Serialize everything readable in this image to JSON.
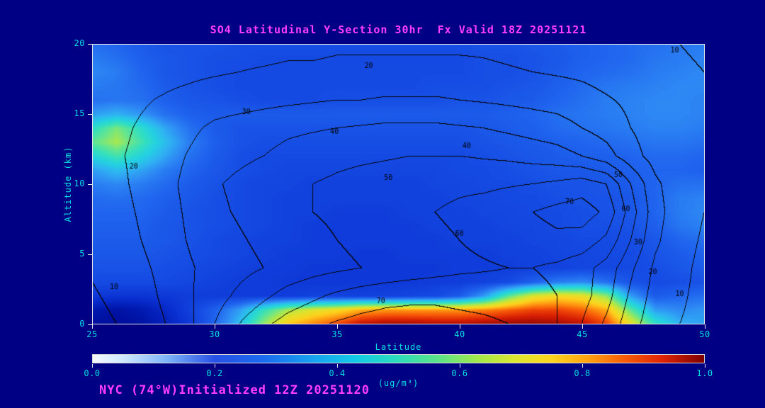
{
  "footer": "NYC (74°W)Initialized 12Z 20251120",
  "colors": {
    "background": "#000084",
    "title": "#ff3dff",
    "axis_text": "#00e0e0",
    "frame": "#e8e8e8",
    "contour": "#000000"
  },
  "chart_data": {
    "type": "heatmap",
    "title": "SO4 Latitudinal Y-Section 30hr  Fx Valid 18Z 20251121",
    "xlabel": "Latitude",
    "ylabel": "Altitude (km)",
    "x_range": [
      25,
      50
    ],
    "y_range": [
      0,
      20
    ],
    "x_ticks": [
      25,
      30,
      35,
      40,
      45,
      50
    ],
    "y_ticks": [
      20,
      15,
      10,
      5,
      0
    ],
    "grid": "off",
    "colorbar": {
      "min": 0.0,
      "max": 1.0,
      "ticks": [
        "0.0",
        "0.2",
        "0.4",
        "0.6",
        "0.8",
        "1.0"
      ],
      "units": "(ug/m³)",
      "stops": [
        [
          0.0,
          "#f6faff"
        ],
        [
          0.05,
          "#cfe8ff"
        ],
        [
          0.12,
          "#7fb6f8"
        ],
        [
          0.2,
          "#2750e6"
        ],
        [
          0.28,
          "#1a6cf0"
        ],
        [
          0.36,
          "#18a2f0"
        ],
        [
          0.43,
          "#12cae6"
        ],
        [
          0.5,
          "#2cdcba"
        ],
        [
          0.57,
          "#60e484"
        ],
        [
          0.63,
          "#a2e84c"
        ],
        [
          0.69,
          "#dce630"
        ],
        [
          0.75,
          "#fdd51e"
        ],
        [
          0.81,
          "#ffa110"
        ],
        [
          0.87,
          "#f85c08"
        ],
        [
          0.93,
          "#e02404"
        ],
        [
          1.0,
          "#7e0000"
        ]
      ]
    },
    "fill_colormap_stops": [
      [
        0.0,
        "#000084"
      ],
      [
        0.07,
        "#0016aa"
      ],
      [
        0.14,
        "#0a30d2"
      ],
      [
        0.2,
        "#154ae2"
      ],
      [
        0.26,
        "#1f64ee"
      ],
      [
        0.32,
        "#2e88f4"
      ],
      [
        0.38,
        "#2fb2f2"
      ],
      [
        0.44,
        "#24d0e2"
      ],
      [
        0.5,
        "#34dfbe"
      ],
      [
        0.56,
        "#66e68e"
      ],
      [
        0.62,
        "#aae84e"
      ],
      [
        0.68,
        "#e0e22c"
      ],
      [
        0.74,
        "#fdd11d"
      ],
      [
        0.8,
        "#ff9812"
      ],
      [
        0.86,
        "#f65608"
      ],
      [
        0.92,
        "#d81e04"
      ],
      [
        1.0,
        "#7e0000"
      ]
    ],
    "so4_grid": {
      "lat_min": 25,
      "lat_max": 50,
      "alt_top": 20,
      "alt_bottom": 0,
      "row_order": "top_to_bottom",
      "values_x100": [
        [
          28,
          26,
          24,
          22,
          22,
          22,
          21,
          21,
          21,
          21,
          21,
          21,
          21,
          21,
          21,
          21,
          22,
          22,
          23,
          24,
          25,
          26,
          27,
          28,
          29,
          30
        ],
        [
          30,
          28,
          25,
          23,
          22,
          21,
          21,
          20,
          20,
          20,
          20,
          20,
          20,
          20,
          20,
          20,
          21,
          21,
          22,
          23,
          25,
          26,
          27,
          29,
          30,
          31
        ],
        [
          32,
          30,
          26,
          23,
          22,
          21,
          20,
          20,
          20,
          20,
          20,
          20,
          20,
          20,
          20,
          20,
          21,
          21,
          22,
          24,
          26,
          27,
          28,
          30,
          31,
          32
        ],
        [
          30,
          29,
          27,
          24,
          22,
          21,
          20,
          20,
          20,
          20,
          20,
          20,
          20,
          20,
          21,
          21,
          21,
          22,
          23,
          25,
          27,
          29,
          30,
          31,
          32,
          32
        ],
        [
          28,
          29,
          28,
          25,
          23,
          22,
          21,
          20,
          20,
          20,
          21,
          21,
          21,
          21,
          21,
          22,
          22,
          23,
          24,
          26,
          28,
          30,
          31,
          32,
          32,
          31
        ],
        [
          35,
          38,
          34,
          28,
          25,
          24,
          24,
          24,
          24,
          24,
          24,
          24,
          24,
          24,
          24,
          24,
          24,
          25,
          26,
          28,
          29,
          30,
          31,
          32,
          32,
          31
        ],
        [
          48,
          58,
          48,
          36,
          28,
          24,
          22,
          22,
          22,
          22,
          22,
          22,
          22,
          22,
          22,
          22,
          23,
          24,
          25,
          27,
          28,
          29,
          30,
          31,
          31,
          30
        ],
        [
          55,
          62,
          52,
          40,
          30,
          25,
          22,
          21,
          21,
          21,
          21,
          21,
          21,
          21,
          21,
          21,
          22,
          23,
          24,
          25,
          26,
          27,
          28,
          29,
          29,
          28
        ],
        [
          45,
          52,
          45,
          36,
          28,
          24,
          21,
          20,
          20,
          20,
          20,
          20,
          20,
          20,
          20,
          20,
          21,
          22,
          23,
          24,
          25,
          25,
          26,
          27,
          27,
          26
        ],
        [
          35,
          40,
          36,
          30,
          26,
          23,
          21,
          20,
          19,
          19,
          19,
          19,
          19,
          19,
          19,
          20,
          20,
          21,
          22,
          23,
          23,
          24,
          25,
          26,
          26,
          25
        ],
        [
          30,
          32,
          30,
          27,
          24,
          22,
          20,
          19,
          19,
          18,
          18,
          18,
          18,
          18,
          19,
          19,
          20,
          20,
          21,
          22,
          22,
          23,
          24,
          26,
          28,
          28
        ],
        [
          27,
          28,
          27,
          25,
          23,
          21,
          20,
          19,
          18,
          18,
          18,
          18,
          18,
          18,
          18,
          19,
          19,
          20,
          20,
          21,
          22,
          22,
          23,
          26,
          30,
          31
        ],
        [
          26,
          26,
          26,
          24,
          22,
          21,
          20,
          19,
          18,
          18,
          17,
          17,
          17,
          18,
          18,
          18,
          19,
          19,
          20,
          20,
          21,
          22,
          23,
          26,
          30,
          32
        ],
        [
          25,
          25,
          25,
          23,
          22,
          21,
          20,
          19,
          18,
          17,
          17,
          17,
          17,
          17,
          18,
          18,
          18,
          19,
          19,
          20,
          21,
          21,
          22,
          25,
          29,
          31
        ],
        [
          24,
          24,
          24,
          23,
          22,
          20,
          19,
          18,
          18,
          17,
          17,
          17,
          17,
          17,
          17,
          18,
          18,
          18,
          19,
          19,
          20,
          20,
          21,
          23,
          26,
          28
        ],
        [
          23,
          23,
          23,
          22,
          21,
          20,
          19,
          18,
          17,
          17,
          17,
          16,
          16,
          17,
          17,
          17,
          17,
          18,
          18,
          19,
          19,
          20,
          20,
          22,
          24,
          26
        ],
        [
          22,
          22,
          22,
          21,
          20,
          19,
          18,
          17,
          17,
          16,
          16,
          16,
          16,
          16,
          16,
          17,
          17,
          17,
          18,
          18,
          19,
          19,
          20,
          21,
          23,
          24
        ],
        [
          20,
          20,
          20,
          20,
          19,
          18,
          17,
          17,
          16,
          16,
          16,
          16,
          16,
          16,
          17,
          17,
          18,
          20,
          25,
          30,
          32,
          28,
          22,
          20,
          21,
          22
        ],
        [
          16,
          15,
          15,
          16,
          17,
          17,
          17,
          17,
          17,
          18,
          18,
          18,
          18,
          19,
          20,
          24,
          35,
          55,
          68,
          72,
          70,
          60,
          35,
          24,
          26,
          28
        ],
        [
          8,
          6,
          8,
          12,
          18,
          25,
          35,
          50,
          62,
          68,
          72,
          78,
          80,
          80,
          80,
          80,
          82,
          85,
          88,
          88,
          85,
          78,
          55,
          35,
          32,
          34
        ],
        [
          5,
          4,
          6,
          10,
          16,
          26,
          40,
          60,
          75,
          82,
          88,
          95,
          97,
          97,
          96,
          96,
          97,
          98,
          98,
          97,
          95,
          88,
          70,
          50,
          38,
          36
        ]
      ]
    },
    "contour_overlay": {
      "levels": [
        10,
        20,
        30,
        40,
        50,
        60,
        70
      ],
      "alt_top": 20,
      "alt_bottom": 0,
      "row_order": "top_to_bottom",
      "values": [
        [
          12,
          13,
          14,
          15,
          15,
          15,
          16,
          16,
          17,
          17,
          18,
          18,
          18,
          18,
          18,
          18,
          18,
          17,
          16,
          15,
          14,
          13,
          12,
          11,
          10,
          9
        ],
        [
          14,
          15,
          16,
          17,
          18,
          19,
          20,
          21,
          22,
          22,
          23,
          23,
          23,
          23,
          23,
          23,
          22,
          21,
          20,
          19,
          18,
          16,
          14,
          12,
          11,
          10
        ],
        [
          15,
          17,
          19,
          21,
          23,
          25,
          26,
          27,
          28,
          29,
          30,
          30,
          31,
          31,
          31,
          30,
          29,
          28,
          27,
          26,
          24,
          21,
          18,
          15,
          12,
          10
        ],
        [
          16,
          18,
          21,
          24,
          28,
          32,
          34,
          36,
          38,
          39,
          40,
          41,
          42,
          42,
          42,
          41,
          40,
          38,
          36,
          34,
          30,
          26,
          20,
          15,
          12,
          10
        ],
        [
          16,
          19,
          22,
          26,
          31,
          36,
          38,
          40,
          43,
          45,
          47,
          48,
          49,
          50,
          50,
          50,
          49,
          48,
          46,
          44,
          40,
          34,
          24,
          16,
          12,
          10
        ],
        [
          14,
          18,
          22,
          27,
          33,
          39,
          42,
          45,
          48,
          50,
          52,
          54,
          55,
          56,
          57,
          58,
          58,
          59,
          60,
          62,
          65,
          60,
          40,
          22,
          14,
          10
        ],
        [
          13,
          17,
          21,
          26,
          32,
          38,
          41,
          44,
          47,
          50,
          52,
          54,
          56,
          58,
          60,
          62,
          64,
          67,
          70,
          73,
          75,
          68,
          45,
          24,
          14,
          10
        ],
        [
          12,
          16,
          20,
          25,
          31,
          36,
          39,
          42,
          45,
          47,
          50,
          52,
          54,
          56,
          58,
          60,
          62,
          64,
          66,
          68,
          66,
          58,
          40,
          22,
          13,
          9
        ],
        [
          11,
          14,
          18,
          23,
          29,
          34,
          37,
          40,
          43,
          46,
          48,
          50,
          52,
          54,
          56,
          58,
          59,
          60,
          60,
          58,
          54,
          46,
          32,
          18,
          12,
          8
        ],
        [
          9,
          12,
          16,
          22,
          29,
          36,
          42,
          48,
          54,
          58,
          62,
          65,
          67,
          68,
          68,
          67,
          66,
          65,
          63,
          60,
          54,
          44,
          28,
          16,
          11,
          8
        ],
        [
          7,
          10,
          14,
          20,
          28,
          40,
          50,
          58,
          64,
          68,
          71,
          73,
          74,
          74,
          74,
          73,
          72,
          70,
          66,
          60,
          50,
          38,
          24,
          14,
          10,
          8
        ]
      ],
      "labels": [
        {
          "v": 10,
          "lat": 48.8,
          "alt": 19.5
        },
        {
          "v": 20,
          "lat": 36.3,
          "alt": 18.4
        },
        {
          "v": 30,
          "lat": 31.3,
          "alt": 15.1
        },
        {
          "v": 40,
          "lat": 34.9,
          "alt": 13.7
        },
        {
          "v": 40,
          "lat": 40.3,
          "alt": 12.7
        },
        {
          "v": 50,
          "lat": 37.1,
          "alt": 10.4
        },
        {
          "v": 50,
          "lat": 46.5,
          "alt": 10.6
        },
        {
          "v": 60,
          "lat": 40.0,
          "alt": 6.4
        },
        {
          "v": 60,
          "lat": 46.8,
          "alt": 8.2
        },
        {
          "v": 70,
          "lat": 44.5,
          "alt": 8.7
        },
        {
          "v": 70,
          "lat": 36.8,
          "alt": 1.6
        },
        {
          "v": 30,
          "lat": 47.3,
          "alt": 5.8
        },
        {
          "v": 20,
          "lat": 47.9,
          "alt": 3.7
        },
        {
          "v": 10,
          "lat": 49.0,
          "alt": 2.1
        },
        {
          "v": 20,
          "lat": 26.7,
          "alt": 11.2
        },
        {
          "v": 10,
          "lat": 25.9,
          "alt": 2.6
        }
      ]
    }
  }
}
